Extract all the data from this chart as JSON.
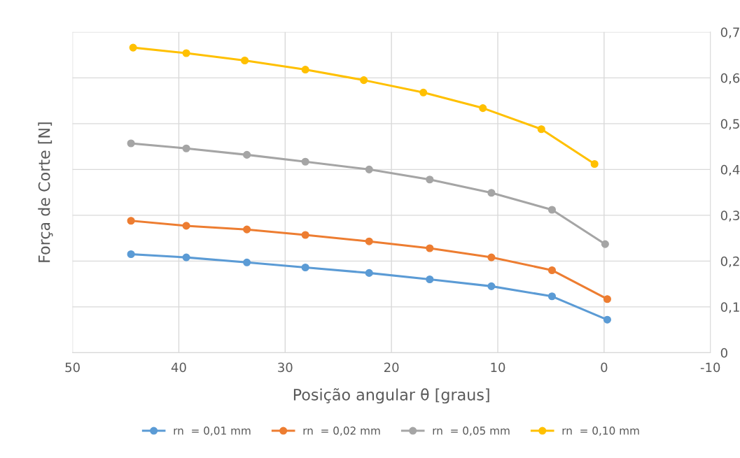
{
  "chart_data": {
    "type": "line",
    "xlabel": "Posição angular θ [graus]",
    "ylabel": "Força de Corte [N]",
    "xlim": [
      50,
      -10
    ],
    "xticks": [
      50,
      40,
      30,
      20,
      10,
      0,
      -10
    ],
    "ylim": [
      0,
      0.7
    ],
    "yticks": [
      0,
      {
        "value": 0.1,
        "label": "0,1"
      },
      {
        "value": 0.2,
        "label": "0,2"
      },
      {
        "value": 0.3,
        "label": "0,3"
      },
      {
        "value": 0.4,
        "label": "0,4"
      },
      {
        "value": 0.5,
        "label": "0,5"
      },
      {
        "value": 0.6,
        "label": "0,6"
      },
      {
        "value": 0.7,
        "label": "0,7"
      }
    ],
    "grid": true,
    "legend": "bottom",
    "marker": "circle",
    "line_style": "solid",
    "series": [
      {
        "name": "rn  = 0,01 mm",
        "color": "#5b9bd5",
        "x": [
          44.5,
          39.3,
          33.6,
          28.1,
          22.1,
          16.4,
          10.6,
          4.9,
          -0.3
        ],
        "values": [
          0.215,
          0.208,
          0.197,
          0.186,
          0.174,
          0.16,
          0.145,
          0.123,
          0.072
        ]
      },
      {
        "name": "rn  = 0,02 mm",
        "color": "#ed7d31",
        "x": [
          44.5,
          39.3,
          33.6,
          28.1,
          22.1,
          16.4,
          10.6,
          4.9,
          -0.3
        ],
        "values": [
          0.288,
          0.277,
          0.269,
          0.257,
          0.243,
          0.228,
          0.208,
          0.18,
          0.117
        ]
      },
      {
        "name": "rn  = 0,05 mm",
        "color": "#a5a5a5",
        "x": [
          44.5,
          39.3,
          33.6,
          28.1,
          22.1,
          16.4,
          10.6,
          4.9,
          -0.1
        ],
        "values": [
          0.457,
          0.446,
          0.432,
          0.417,
          0.4,
          0.378,
          0.349,
          0.312,
          0.237
        ]
      },
      {
        "name": "rn  = 0,10 mm",
        "color": "#ffc000",
        "x": [
          44.3,
          39.3,
          33.8,
          28.1,
          22.6,
          17.0,
          11.4,
          5.9,
          0.9
        ],
        "values": [
          0.666,
          0.654,
          0.638,
          0.618,
          0.595,
          0.568,
          0.534,
          0.488,
          0.412
        ]
      }
    ]
  }
}
